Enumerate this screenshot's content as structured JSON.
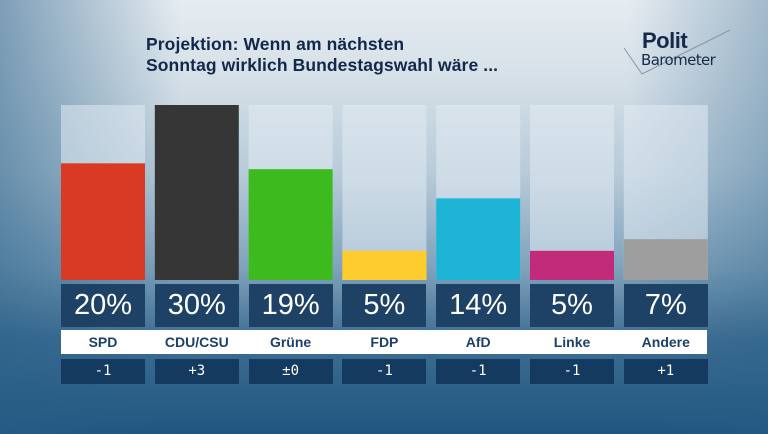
{
  "title": {
    "line1": "Projektion: Wenn am nächsten",
    "line2": "Sonntag wirklich Bundestagswahl wäre ..."
  },
  "logo": {
    "word1": "Polit",
    "word2": "Barometer",
    "icon": "checkmark-icon"
  },
  "chart_data": {
    "type": "bar",
    "title": "Projektion: Wenn am nächsten Sonntag wirklich Bundestagswahl wäre ...",
    "xlabel": "",
    "ylabel": "",
    "ylim": [
      0,
      30
    ],
    "grid": false,
    "legend": "none",
    "categories": [
      "SPD",
      "CDU/CSU",
      "Grüne",
      "FDP",
      "AfD",
      "Linke",
      "Andere"
    ],
    "values": [
      20,
      30,
      19,
      5,
      14,
      5,
      7
    ],
    "value_labels": [
      "20%",
      "30%",
      "19%",
      "5%",
      "14%",
      "5%",
      "7%"
    ],
    "changes": [
      "-1",
      "+3",
      "±0",
      "-1",
      "-1",
      "-1",
      "+1"
    ],
    "colors": [
      "#d93a23",
      "#363636",
      "#3dba1d",
      "#fecc2d",
      "#1db4d6",
      "#c22a7a",
      "#9e9e9e"
    ],
    "unit": "%"
  }
}
